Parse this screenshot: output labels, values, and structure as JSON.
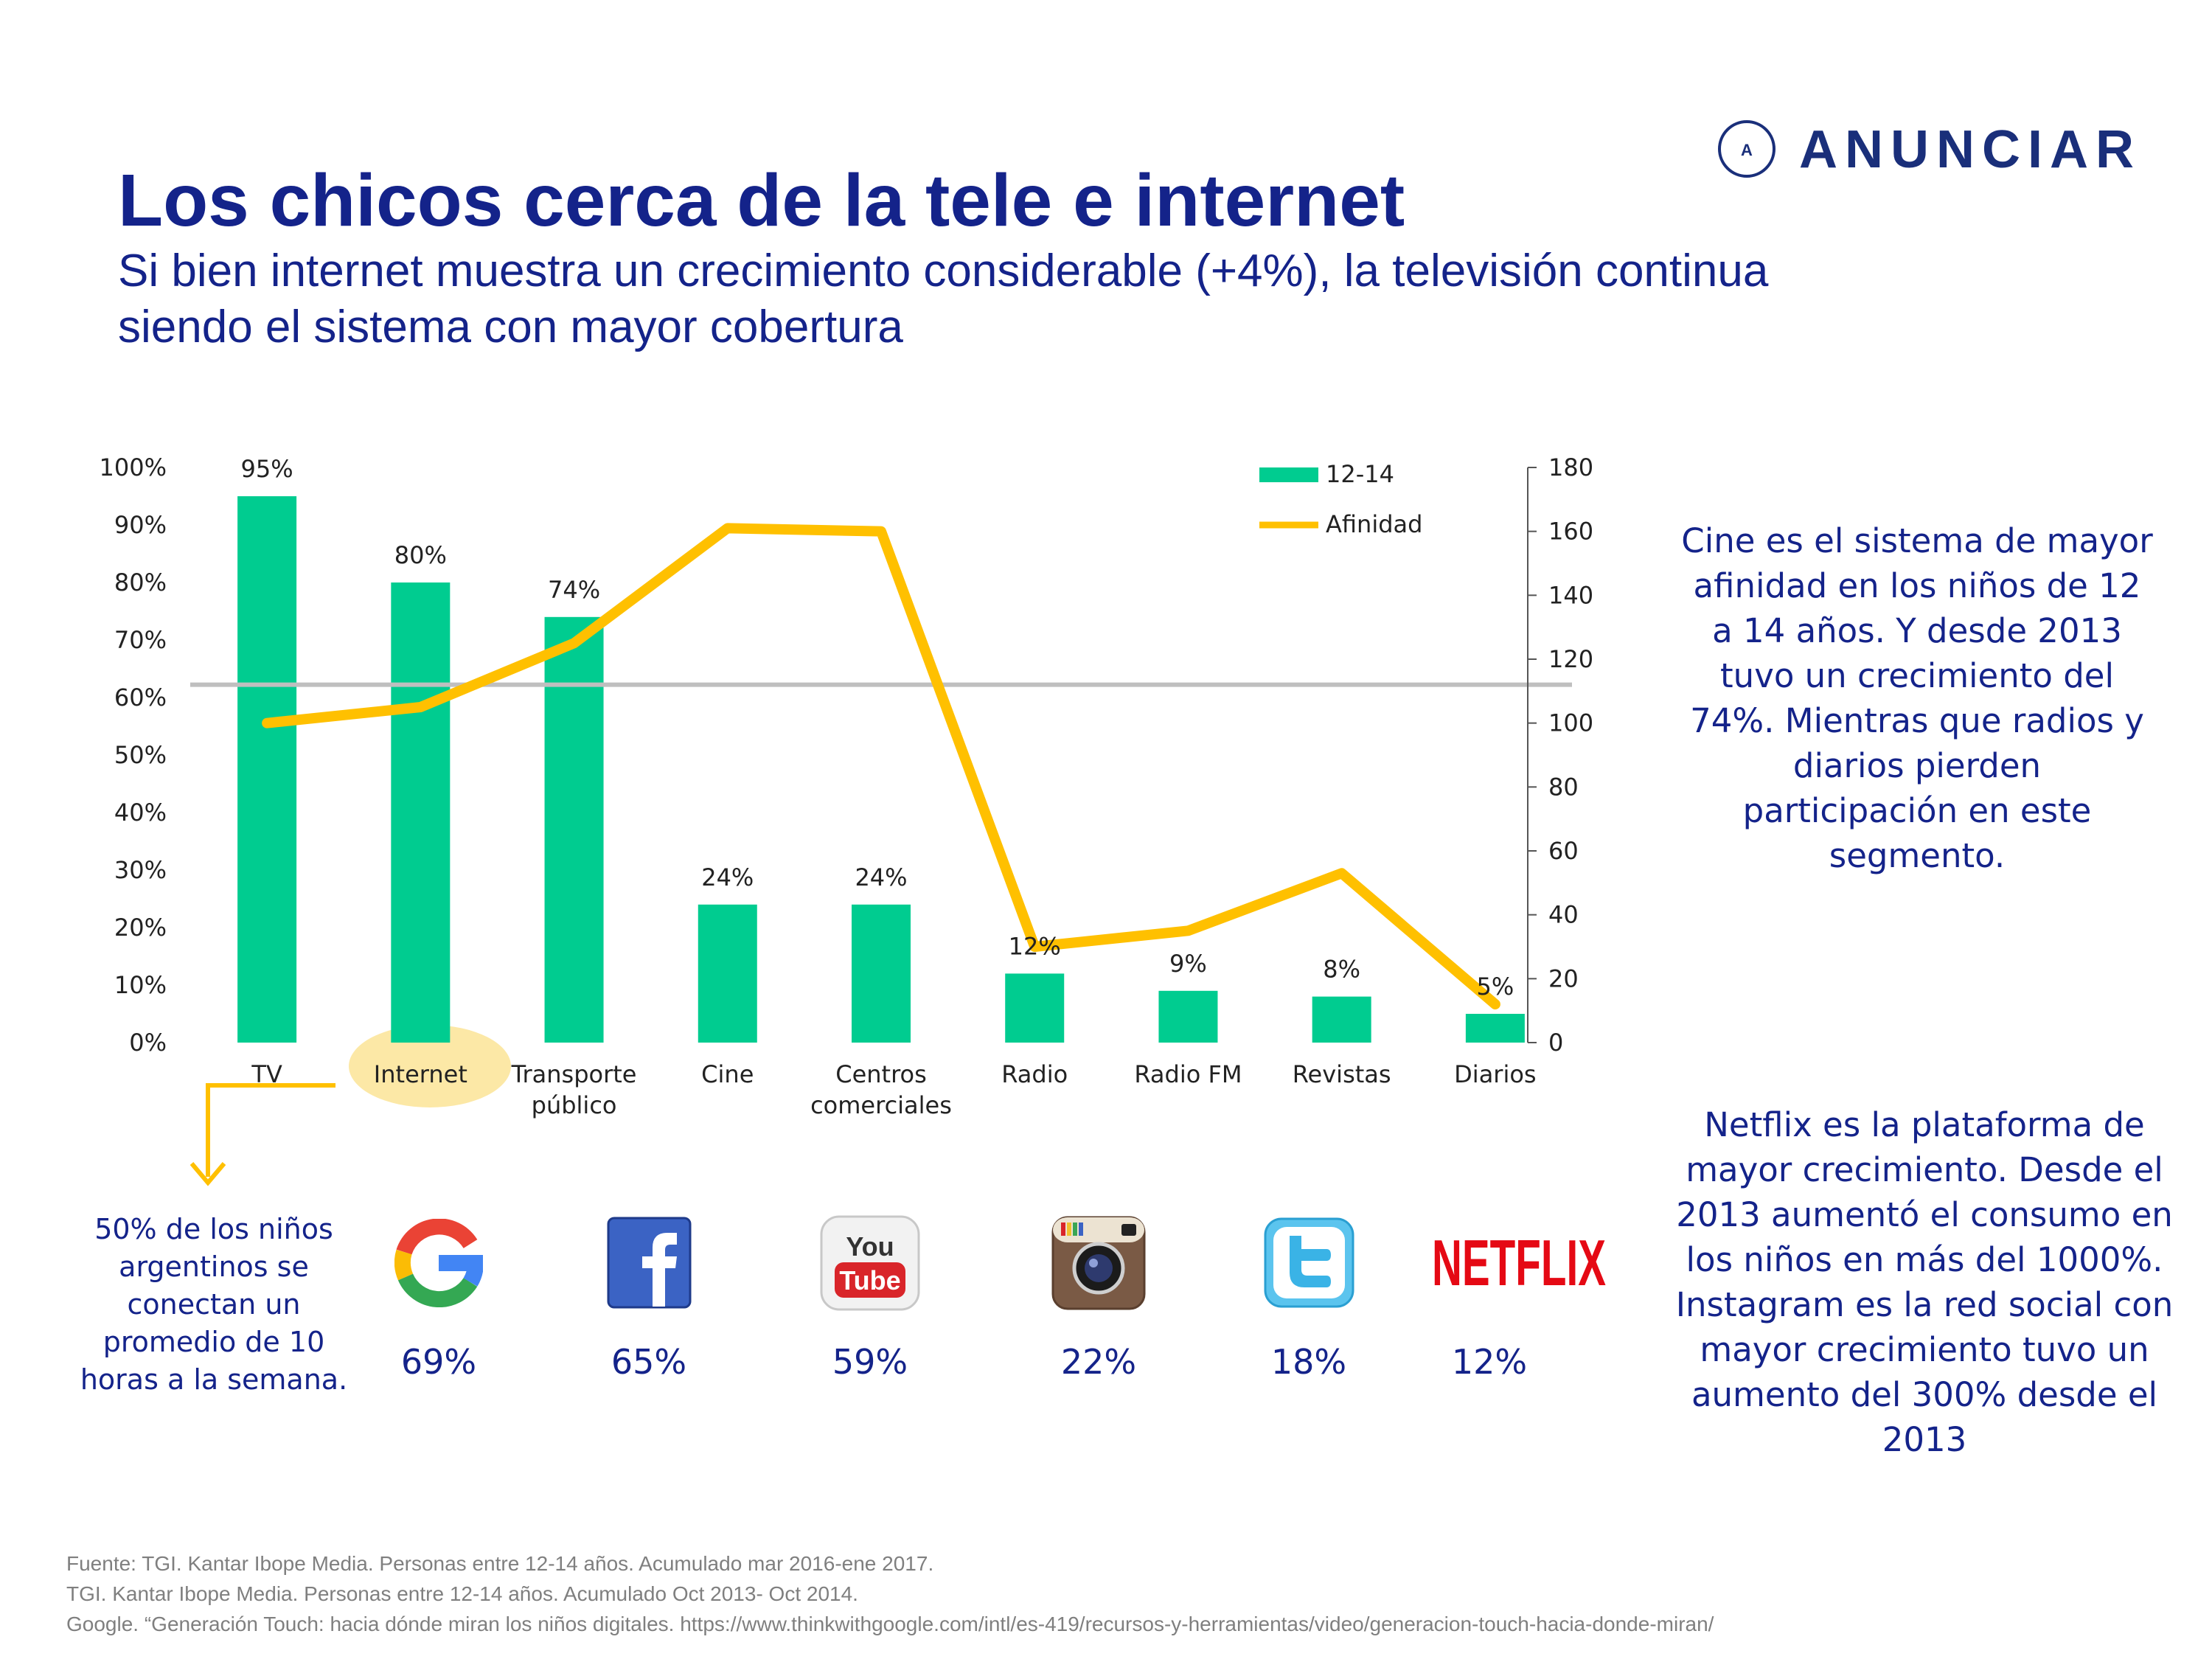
{
  "brand": {
    "name": "ANUNCIAR",
    "initial": "A"
  },
  "title": "Los chicos cerca de la tele e internet",
  "subtitle": "Si bien internet muestra un crecimiento considerable (+4%), la televisión continua siendo el sistema con mayor cobertura",
  "colors": {
    "bar": "#00cc90",
    "line": "#ffc000",
    "text": "#14238a",
    "reference_line": "#bfbfbf",
    "highlight": "#fce8a6"
  },
  "chart_data": {
    "type": "bar",
    "categories": [
      "TV",
      "Internet",
      "Transporte público",
      "Cine",
      "Centros comerciales",
      "Radio",
      "Radio FM",
      "Revistas",
      "Diarios"
    ],
    "category_lines": [
      [
        "TV"
      ],
      [
        "Internet"
      ],
      [
        "Transporte",
        "público"
      ],
      [
        "Cine"
      ],
      [
        "Centros",
        "comerciales"
      ],
      [
        "Radio"
      ],
      [
        "Radio FM"
      ],
      [
        "Revistas"
      ],
      [
        "Diarios"
      ]
    ],
    "series": [
      {
        "name": "12-14",
        "type": "bar",
        "axis": "left",
        "values": [
          95,
          80,
          74,
          24,
          24,
          12,
          9,
          8,
          5
        ],
        "labels": [
          "95%",
          "80%",
          "74%",
          "24%",
          "24%",
          "12%",
          "9%",
          "8%",
          "5%"
        ]
      },
      {
        "name": "Afinidad",
        "type": "line",
        "axis": "right",
        "values": [
          100,
          105,
          125,
          161,
          160,
          30,
          35,
          53,
          12
        ]
      }
    ],
    "y_left": {
      "min": 0,
      "max": 100,
      "ticks": [
        "0%",
        "10%",
        "20%",
        "30%",
        "40%",
        "50%",
        "60%",
        "70%",
        "80%",
        "90%",
        "100%"
      ]
    },
    "y_right": {
      "min": 0,
      "max": 180,
      "ticks": [
        "0",
        "20",
        "40",
        "60",
        "80",
        "100",
        "120",
        "140",
        "160",
        "180"
      ]
    },
    "reference_line_right": 112,
    "legend_position": "top-right",
    "highlighted_category": "Internet"
  },
  "notes": {
    "cine": "Cine es el sistema de mayor afinidad en los niños de 12 a 14 años. Y desde 2013 tuvo un crecimiento del 74%. Mientras que radios y diarios pierden participación en este segmento.",
    "netflix": "Netflix es la plataforma de mayor crecimiento. Desde el 2013 aumentó el consumo en los niños en más del 1000%. Instagram es la red social con mayor crecimiento tuvo un aumento del 300% desde el 2013",
    "internet": "50% de los niños argentinos se conectan un promedio de 10 horas a la semana."
  },
  "platforms": [
    {
      "icon": "google-icon",
      "pct": "69%"
    },
    {
      "icon": "facebook-icon",
      "pct": "65%"
    },
    {
      "icon": "youtube-icon",
      "pct": "59%",
      "logo_text": [
        "You",
        "Tube"
      ]
    },
    {
      "icon": "instagram-icon",
      "pct": "22%"
    },
    {
      "icon": "twitter-icon",
      "pct": "18%"
    },
    {
      "icon": "netflix-icon",
      "pct": "12%",
      "logo_text": [
        "NETFLIX"
      ]
    }
  ],
  "sources": [
    "Fuente: TGI. Kantar Ibope Media. Personas entre 12-14 años.  Acumulado mar 2016-ene 2017.",
    "TGI. Kantar Ibope Media. Personas entre 12-14 años.  Acumulado Oct 2013- Oct 2014.",
    "Google. “Generación Touch: hacia dónde miran los niños digitales. https://www.thinkwithgoogle.com/intl/es-419/recursos-y-herramientas/video/generacion-touch-hacia-donde-miran/"
  ]
}
